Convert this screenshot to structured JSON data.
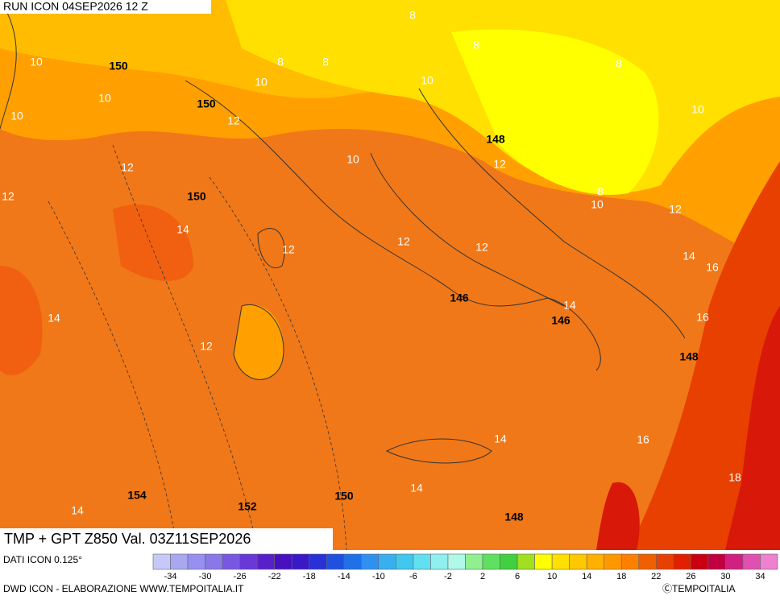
{
  "header": {
    "run": "RUN ICON 04SEP2026 12 Z"
  },
  "map": {
    "title": "TMP + GPT Z850 Val. 03Z11SEP2026",
    "temperature_labels": [
      8,
      8,
      8,
      8,
      8,
      10,
      10,
      10,
      10,
      10,
      10,
      10,
      10,
      8,
      12,
      12,
      12,
      12,
      12,
      12,
      12,
      12,
      12,
      14,
      14,
      14,
      14,
      14,
      14,
      14,
      16,
      16,
      16,
      18
    ],
    "height_labels": [
      150,
      150,
      150,
      148,
      146,
      146,
      148,
      154,
      152,
      150,
      148
    ]
  },
  "footer": {
    "source": "DATI ICON 0.125°",
    "credit": "DWD ICON - ELABORAZIONE WWW.TEMPOITALIA.IT",
    "copyright": "ⒸTEMPOITALIA"
  },
  "legend": {
    "colors": [
      "#c8c8f8",
      "#a8a8f0",
      "#9890f0",
      "#8878e8",
      "#7858e0",
      "#6838d8",
      "#5820c8",
      "#4810c0",
      "#3818c8",
      "#2830d8",
      "#2050e0",
      "#2070e8",
      "#3090f0",
      "#38b0f0",
      "#40c8f0",
      "#60e0f0",
      "#90f0f0",
      "#b0f8e8",
      "#90f090",
      "#60e060",
      "#40d040",
      "#a0e020",
      "#ffff00",
      "#ffe000",
      "#ffc800",
      "#ffb000",
      "#ff9800",
      "#ff8000",
      "#f06000",
      "#e84000",
      "#e02000",
      "#c80010",
      "#c00040",
      "#d02080",
      "#e050b0",
      "#f080d0"
    ],
    "ticks": [
      -34,
      -30,
      -26,
      -22,
      -18,
      -14,
      -10,
      -6,
      -2,
      2,
      6,
      10,
      14,
      18,
      22,
      26,
      30,
      34
    ]
  }
}
